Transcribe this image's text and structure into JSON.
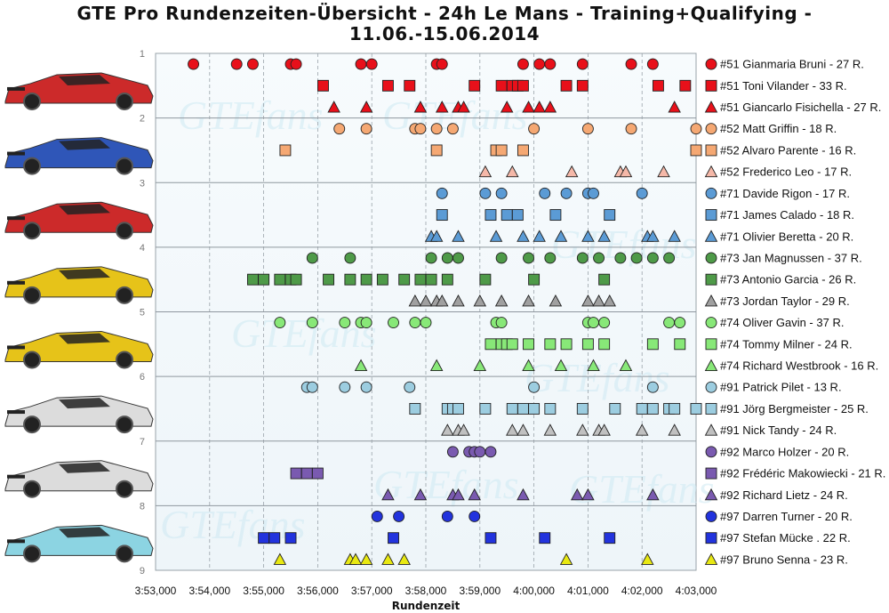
{
  "title_line1": "GTE Pro Rundenzeiten-Übersicht - 24h Le Mans - Training+Qualifying -",
  "title_line2": "11.06.-15.06.2014",
  "chart_data": {
    "type": "scatter",
    "xlabel": "Rundenzeit",
    "x_ticks": [
      "3:53,000",
      "3:54,000",
      "3:55,000",
      "3:56,000",
      "3:57,000",
      "3:58,000",
      "3:59,000",
      "4:00,000",
      "4:01,000",
      "4:02,000",
      "4:03,000"
    ],
    "xlim": [
      233,
      243
    ],
    "y_ticks": [
      "1",
      "2",
      "3",
      "4",
      "5",
      "6",
      "7",
      "8",
      "9"
    ],
    "ylim": [
      1,
      9
    ],
    "grid": true,
    "legend": "right",
    "watermark": "GTEfans",
    "car_colors": {
      "car51": "#cc2a2a",
      "car52": "#2f56b8",
      "car71": "#cc2a2a",
      "car73": "#e6c319",
      "car74": "#e6c319",
      "car91": "#dcdcdc",
      "car92": "#dcdcdc",
      "car97": "#8cd4e2"
    },
    "series": [
      {
        "name": "#51 Gianmaria Bruni - 27 R.",
        "marker": "circle",
        "color": "#e8101a",
        "row": 1,
        "x": [
          233.7,
          234.5,
          234.8,
          235.5,
          235.6,
          236.8,
          237.0,
          238.2,
          238.3,
          239.8,
          240.1,
          240.3,
          240.9,
          241.8,
          242.2
        ]
      },
      {
        "name": "#51 Toni Vilander - 33 R.",
        "marker": "square",
        "color": "#e8101a",
        "row": 2,
        "x": [
          236.1,
          237.3,
          237.7,
          238.9,
          239.4,
          239.6,
          239.7,
          239.8,
          240.6,
          240.9,
          242.3,
          242.8
        ]
      },
      {
        "name": "#51 Giancarlo Fisichella - 27 R.",
        "marker": "triangle",
        "color": "#e8101a",
        "row": 3,
        "x": [
          236.3,
          236.9,
          237.9,
          238.3,
          238.6,
          238.7,
          239.5,
          239.9,
          240.1,
          240.3,
          242.6
        ]
      },
      {
        "name": "#52 Matt Griffin - 18 R.",
        "marker": "circle",
        "color": "#f5a873",
        "row": 4,
        "x": [
          236.4,
          236.9,
          237.8,
          237.9,
          238.2,
          238.5,
          240.0,
          241.0,
          241.8,
          243.0
        ]
      },
      {
        "name": "#52 Alvaro Parente - 16 R.",
        "marker": "square",
        "color": "#f5a873",
        "row": 5,
        "x": [
          235.4,
          238.2,
          239.3,
          239.4,
          239.8,
          243.0
        ]
      },
      {
        "name": "#52 Frederico Leo - 17 R.",
        "marker": "triangle",
        "color": "#f5b8a8",
        "row": 6,
        "x": [
          239.1,
          239.6,
          240.7,
          241.6,
          241.7,
          242.4
        ]
      },
      {
        "name": "#71 Davide Rigon - 17 R.",
        "marker": "circle",
        "color": "#5b9bd5",
        "row": 7,
        "x": [
          238.3,
          239.1,
          239.4,
          240.2,
          240.6,
          241.0,
          241.1,
          242.0
        ]
      },
      {
        "name": "#71 James Calado - 18 R.",
        "marker": "square",
        "color": "#5b9bd5",
        "row": 8,
        "x": [
          238.3,
          239.2,
          239.5,
          239.7,
          240.4,
          241.4
        ]
      },
      {
        "name": "#71 Olivier Beretta - 20 R.",
        "marker": "triangle",
        "color": "#5b9bd5",
        "row": 9,
        "x": [
          238.1,
          238.2,
          238.6,
          239.3,
          239.8,
          240.1,
          240.5,
          241.0,
          241.3,
          242.1,
          242.2,
          242.6
        ]
      },
      {
        "name": "#73 Jan Magnussen - 37 R.",
        "marker": "circle",
        "color": "#4e9a48",
        "row": 10,
        "x": [
          235.9,
          236.6,
          238.1,
          238.4,
          238.6,
          239.4,
          239.9,
          240.3,
          240.9,
          241.2,
          241.6,
          241.9,
          242.2,
          242.5
        ]
      },
      {
        "name": "#73 Antonio Garcia - 26 R.",
        "marker": "square",
        "color": "#4e9a48",
        "row": 11,
        "x": [
          234.8,
          235.0,
          235.3,
          235.5,
          235.6,
          236.2,
          236.6,
          236.9,
          237.2,
          237.6,
          237.9,
          238.1,
          238.4,
          239.1,
          240.0,
          241.3
        ]
      },
      {
        "name": "#73 Jordan Taylor - 29 R.",
        "marker": "triangle",
        "color": "#a0a0a0",
        "row": 12,
        "x": [
          237.8,
          238.0,
          238.2,
          238.3,
          238.6,
          239.0,
          239.4,
          239.9,
          240.4,
          241.0,
          241.2,
          241.4
        ]
      },
      {
        "name": "#74 Oliver Gavin - 37 R.",
        "marker": "circle",
        "color": "#88e878",
        "row": 13,
        "x": [
          235.3,
          235.9,
          236.5,
          236.8,
          236.9,
          237.4,
          237.8,
          238.0,
          239.3,
          239.4,
          241.0,
          241.1,
          241.3,
          242.5,
          242.7
        ]
      },
      {
        "name": "#74 Tommy Milner - 24 R.",
        "marker": "square",
        "color": "#88e878",
        "row": 14,
        "x": [
          239.2,
          239.4,
          239.5,
          239.6,
          239.9,
          240.3,
          240.6,
          241.0,
          241.3,
          242.2,
          242.7
        ]
      },
      {
        "name": "#74 Richard Westbrook - 16 R.",
        "marker": "triangle",
        "color": "#88e878",
        "row": 15,
        "x": [
          236.8,
          238.2,
          239.0,
          239.9,
          240.5,
          241.1,
          241.7
        ]
      },
      {
        "name": "#91 Patrick Pilet - 13 R.",
        "marker": "circle",
        "color": "#9ccde0",
        "row": 16,
        "x": [
          235.8,
          235.9,
          236.5,
          236.9,
          237.7,
          240.0,
          242.2
        ]
      },
      {
        "name": "#91 Jörg Bergmeister - 25 R.",
        "marker": "square",
        "color": "#9ccde0",
        "row": 17,
        "x": [
          237.8,
          238.4,
          238.5,
          238.6,
          239.1,
          239.6,
          239.8,
          240.0,
          240.3,
          240.9,
          241.5,
          242.0,
          242.2,
          242.5,
          242.6,
          243.0
        ]
      },
      {
        "name": "#91 Nick Tandy - 24 R.",
        "marker": "triangle",
        "color": "#c0c0c0",
        "row": 18,
        "x": [
          238.4,
          238.6,
          238.7,
          239.6,
          239.8,
          240.3,
          240.9,
          241.2,
          241.3,
          242.0,
          242.6
        ]
      },
      {
        "name": "#92 Marco Holzer - 20 R.",
        "marker": "circle",
        "color": "#7a5ab0",
        "row": 19,
        "x": [
          238.5,
          238.8,
          238.9,
          239.0,
          239.2
        ]
      },
      {
        "name": "#92 Frédéric Makowiecki - 21 R.",
        "marker": "square",
        "color": "#7a5ab0",
        "row": 20,
        "x": [
          235.6,
          235.8,
          236.0
        ]
      },
      {
        "name": "#92 Richard Lietz - 24 R.",
        "marker": "triangle",
        "color": "#7a5ab0",
        "row": 21,
        "x": [
          237.3,
          237.9,
          238.5,
          238.6,
          238.9,
          239.8,
          240.8,
          241.0,
          242.2
        ]
      },
      {
        "name": "#97 Darren Turner - 20 R.",
        "marker": "circle",
        "color": "#2233dd",
        "row": 22,
        "x": [
          237.1,
          237.5,
          238.4,
          238.9
        ]
      },
      {
        "name": "#97 Stefan Mücke . 22 R.",
        "marker": "square",
        "color": "#2233dd",
        "row": 23,
        "x": [
          235.0,
          235.2,
          235.5,
          237.4,
          239.2,
          240.2,
          241.4
        ]
      },
      {
        "name": "#97 Bruno Senna - 23 R.",
        "marker": "triangle",
        "color": "#e8e812",
        "row": 24,
        "x": [
          235.3,
          236.6,
          236.7,
          236.9,
          237.3,
          237.6,
          240.6,
          242.1
        ]
      }
    ]
  }
}
